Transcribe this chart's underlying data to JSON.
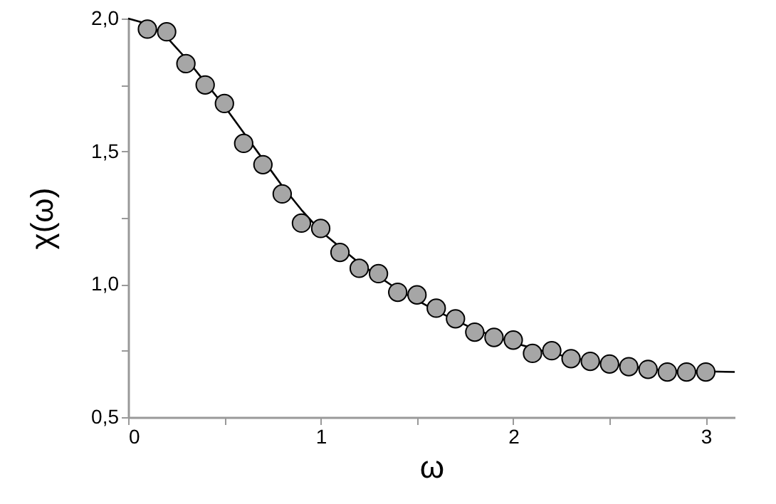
{
  "chart_data": {
    "type": "scatter",
    "xlabel": "ω",
    "ylabel": "χ(ω)",
    "xlim": [
      0,
      3.15
    ],
    "xticks": [
      {
        "value": 0,
        "label": "0"
      },
      {
        "value": 0.5,
        "label": null
      },
      {
        "value": 1,
        "label": "1"
      },
      {
        "value": 1.5,
        "label": null
      },
      {
        "value": 2,
        "label": "2"
      },
      {
        "value": 2.5,
        "label": null
      },
      {
        "value": 3,
        "label": "3"
      }
    ],
    "ylim": [
      0.5,
      2.0
    ],
    "yticks": [
      {
        "value": 0.5,
        "label": "0,5"
      },
      {
        "value": 0.75,
        "label": null
      },
      {
        "value": 1.0,
        "label": "1,0"
      },
      {
        "value": 1.25,
        "label": null
      },
      {
        "value": 1.5,
        "label": "1,5"
      },
      {
        "value": 1.75,
        "label": null
      },
      {
        "value": 2.0,
        "label": "2,0"
      }
    ],
    "grid": false,
    "series": [
      {
        "marker": "circle",
        "color": "#a6a6a6",
        "x": [
          0.1,
          0.2,
          0.3,
          0.4,
          0.5,
          0.6,
          0.7,
          0.8,
          0.9,
          1.0,
          1.1,
          1.2,
          1.3,
          1.4,
          1.5,
          1.6,
          1.7,
          1.8,
          1.9,
          2.0,
          2.1,
          2.2,
          2.3,
          2.4,
          2.5,
          2.6,
          2.7,
          2.8,
          2.9,
          3.0
        ],
        "values": [
          1.96,
          1.95,
          1.83,
          1.75,
          1.68,
          1.53,
          1.45,
          1.34,
          1.23,
          1.21,
          1.12,
          1.06,
          1.04,
          0.97,
          0.96,
          0.91,
          0.87,
          0.82,
          0.8,
          0.79,
          0.74,
          0.75,
          0.72,
          0.71,
          0.7,
          0.69,
          0.68,
          0.67,
          0.67,
          0.67
        ]
      },
      {
        "type": "line",
        "marker": "none",
        "color": "#000000",
        "x": [
          0,
          0.1,
          0.2,
          0.3,
          0.4,
          0.5,
          0.6,
          0.7,
          0.8,
          0.9,
          1.0,
          1.2,
          1.4,
          1.6,
          1.8,
          2.0,
          2.2,
          2.4,
          2.6,
          2.8,
          3.15
        ],
        "values": [
          2.0,
          1.98,
          1.93,
          1.85,
          1.76,
          1.67,
          1.57,
          1.47,
          1.37,
          1.28,
          1.2,
          1.08,
          0.98,
          0.9,
          0.83,
          0.78,
          0.74,
          0.71,
          0.69,
          0.675,
          0.67
        ]
      }
    ]
  }
}
